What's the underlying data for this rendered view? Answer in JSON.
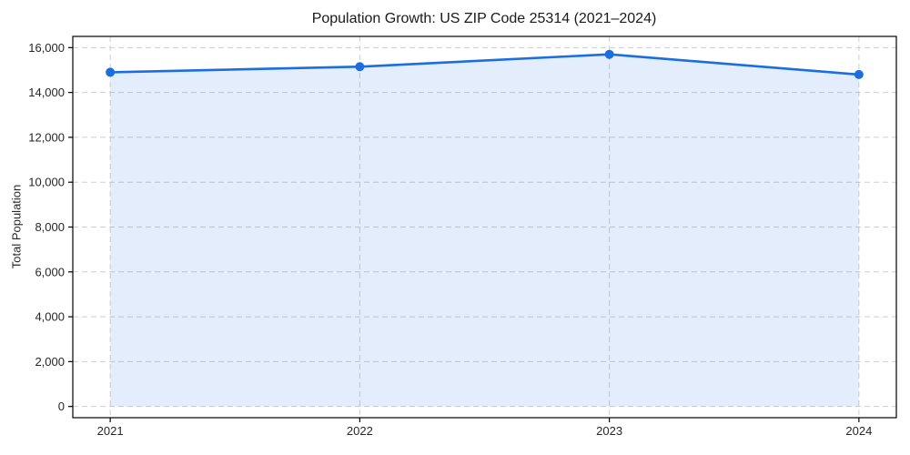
{
  "chart_data": {
    "type": "line",
    "title": "Population Growth: US ZIP Code 25314 (2021–2024)",
    "xlabel": "",
    "ylabel": "Total Population",
    "x": [
      2021,
      2022,
      2023,
      2024
    ],
    "xtick_labels": [
      "2021",
      "2022",
      "2023",
      "2024"
    ],
    "series": [
      {
        "name": "Total Population",
        "values": [
          14900,
          15150,
          15700,
          14800
        ],
        "color": "#1a6ee0",
        "marker": "circle",
        "area_fill": true,
        "fill_opacity": 0.12
      }
    ],
    "yticks": [
      0,
      2000,
      4000,
      6000,
      8000,
      10000,
      12000,
      14000,
      16000
    ],
    "ytick_labels": [
      "0",
      "2,000",
      "4,000",
      "6,000",
      "8,000",
      "10,000",
      "12,000",
      "14,000",
      "16,000"
    ],
    "xlim": [
      2020.85,
      2024.15
    ],
    "ylim": [
      -500,
      16500
    ],
    "grid": true,
    "grid_color": "#cfcfcf",
    "grid_style": "dashed",
    "axis_color": "#000000",
    "text_color": "#262626",
    "legend_position": "none"
  }
}
